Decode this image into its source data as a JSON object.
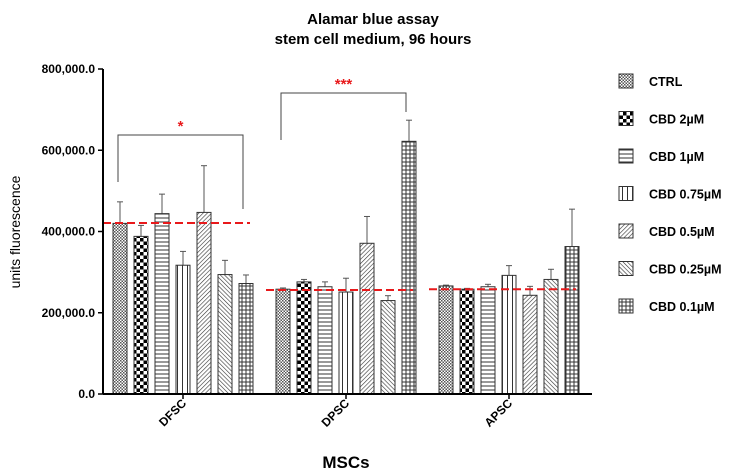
{
  "chart_data": {
    "type": "bar",
    "title": [
      "Alamar blue assay",
      "stem cell medium, 96 hours"
    ],
    "xlabel": "MSCs",
    "ylabel": "units fluorescence",
    "ylim": [
      0,
      800000
    ],
    "yticks": [
      0,
      200000,
      400000,
      600000,
      800000
    ],
    "ytick_labels": [
      "0.0",
      "200,000.0",
      "400,000.0",
      "600,000.0",
      "800,000.0"
    ],
    "categories": [
      "DFSC",
      "DPSC",
      "APSC"
    ],
    "legend_position": "right",
    "series": [
      {
        "name": "CTRL",
        "pattern": "fine-crosshatch",
        "values": [
          420000,
          258000,
          266000
        ],
        "errors": [
          53000,
          3000,
          2000
        ]
      },
      {
        "name": "CBD 2µM",
        "pattern": "checker",
        "values": [
          388000,
          276000,
          258000
        ],
        "errors": [
          27000,
          6000,
          2000
        ]
      },
      {
        "name": "CBD 1µM",
        "pattern": "horizontal",
        "values": [
          444000,
          264000,
          264000
        ],
        "errors": [
          48000,
          12000,
          6000
        ]
      },
      {
        "name": "CBD 0.75µM",
        "pattern": "vertical",
        "values": [
          317000,
          251000,
          292000
        ],
        "errors": [
          34000,
          34000,
          24000
        ]
      },
      {
        "name": "CBD 0.5µM",
        "pattern": "diag-up",
        "values": [
          447000,
          371000,
          243000
        ],
        "errors": [
          115000,
          66000,
          22000
        ]
      },
      {
        "name": "CBD 0.25µM",
        "pattern": "diag-down",
        "values": [
          294000,
          230000,
          282000
        ],
        "errors": [
          35000,
          12000,
          25000
        ]
      },
      {
        "name": "CBD 0.1µM",
        "pattern": "grid",
        "values": [
          272000,
          622000,
          363000
        ],
        "errors": [
          21000,
          52000,
          92000
        ]
      }
    ],
    "reference_lines": [
      {
        "category": "DFSC",
        "value": 421000,
        "color": "#e8191b"
      },
      {
        "category": "DPSC",
        "value": 256000,
        "color": "#e8191b"
      },
      {
        "category": "APSC",
        "value": 258000,
        "color": "#e8191b"
      }
    ],
    "annotations": [
      {
        "category": "DFSC",
        "from_series": "CTRL",
        "to_series": "CBD 0.1µM",
        "label": "*",
        "color": "#e8191b"
      },
      {
        "category": "DPSC",
        "from_series": "CTRL",
        "to_series": "CBD 0.1µM",
        "label": "***",
        "color": "#e8191b"
      }
    ]
  }
}
